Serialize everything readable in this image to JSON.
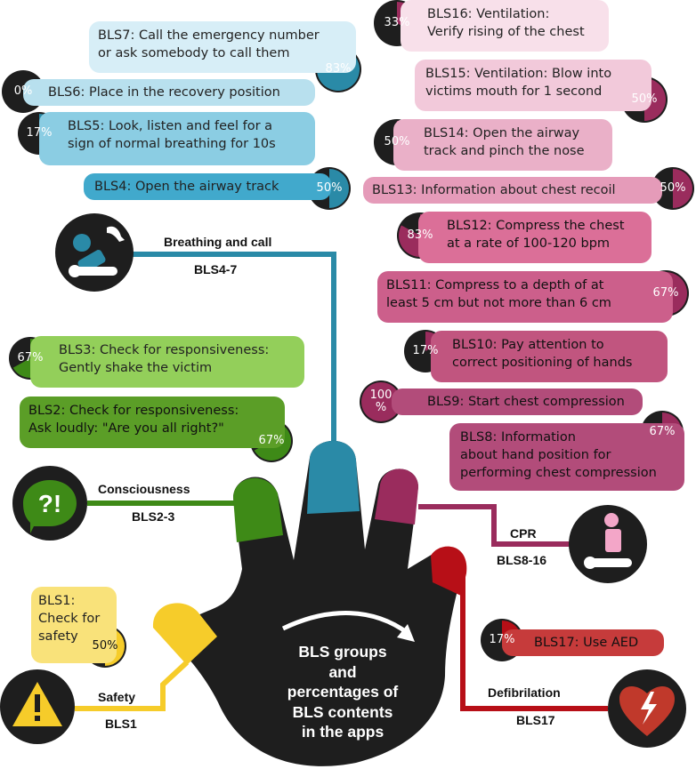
{
  "center_text": [
    "BLS groups",
    "and",
    "percentages of",
    "BLS contents",
    "in the apps"
  ],
  "groups": [
    {
      "id": "safety",
      "title": "Safety",
      "code": "BLS1",
      "color": "#f6cc2a"
    },
    {
      "id": "consciousness",
      "title": "Consciousness",
      "code": "BLS2-3",
      "color": "#3e8a17"
    },
    {
      "id": "breathing",
      "title": "Breathing and call",
      "code": "BLS4-7",
      "color": "#2a8aa7"
    },
    {
      "id": "cpr",
      "title": "CPR",
      "code": "BLS8-16",
      "color": "#9a2c5d"
    },
    {
      "id": "defib",
      "title": "Defibrilation",
      "code": "BLS17",
      "color": "#b70f17"
    }
  ],
  "icons": {
    "safety": "warning-triangle-icon",
    "consciousness": "question-exclamation-speech-icon",
    "breathing": "person-phone-call-icon",
    "cpr": "cpr-person-icon",
    "defib": "heart-defibrillator-icon"
  },
  "items": [
    {
      "id": "bls1",
      "lines": [
        "BLS1:",
        "Check for",
        "safety"
      ],
      "pct": "50%",
      "value": 50,
      "group": "safety"
    },
    {
      "id": "bls2",
      "lines": [
        "BLS2: Check for responsiveness:",
        "Ask loudly: \"Are you all right?\""
      ],
      "pct": "67%",
      "value": 67,
      "group": "consciousness"
    },
    {
      "id": "bls3",
      "lines": [
        "BLS3: Check for responsiveness:",
        "Gently shake the victim"
      ],
      "pct": "67%",
      "value": 67,
      "group": "consciousness"
    },
    {
      "id": "bls4",
      "lines": [
        "BLS4: Open the airway track"
      ],
      "pct": "50%",
      "value": 50,
      "group": "breathing"
    },
    {
      "id": "bls5",
      "lines": [
        "BLS5: Look, listen and feel for a",
        "sign of normal breathing for 10s"
      ],
      "pct": "17%",
      "value": 17,
      "group": "breathing"
    },
    {
      "id": "bls6",
      "lines": [
        "BLS6: Place in the recovery position"
      ],
      "pct": "0%",
      "value": 0,
      "group": "breathing"
    },
    {
      "id": "bls7",
      "lines": [
        "BLS7: Call the emergency number",
        "or ask somebody to call them"
      ],
      "pct": "83%",
      "value": 83,
      "group": "breathing"
    },
    {
      "id": "bls8",
      "lines": [
        "BLS8: Information",
        "about hand position for",
        "performing chest compression"
      ],
      "pct": "67%",
      "value": 67,
      "group": "cpr"
    },
    {
      "id": "bls9",
      "lines": [
        "BLS9: Start chest compression"
      ],
      "pct": "100\n%",
      "value": 100,
      "group": "cpr"
    },
    {
      "id": "bls10",
      "lines": [
        "BLS10: Pay attention to",
        "correct positioning of hands"
      ],
      "pct": "17%",
      "value": 17,
      "group": "cpr"
    },
    {
      "id": "bls11",
      "lines": [
        "BLS11: Compress to a depth of at",
        "least 5 cm but not more than 6 cm"
      ],
      "pct": "67%",
      "value": 67,
      "group": "cpr"
    },
    {
      "id": "bls12",
      "lines": [
        "BLS12: Compress the chest",
        "at a rate of 100-120 bpm"
      ],
      "pct": "83%",
      "value": 83,
      "group": "cpr"
    },
    {
      "id": "bls13",
      "lines": [
        "BLS13: Information about chest recoil"
      ],
      "pct": "50%",
      "value": 50,
      "group": "cpr"
    },
    {
      "id": "bls14",
      "lines": [
        "BLS14: Open the airway",
        "track and pinch the nose"
      ],
      "pct": "50%",
      "value": 50,
      "group": "cpr"
    },
    {
      "id": "bls15",
      "lines": [
        "BLS15: Ventilation: Blow into",
        "victims mouth for 1 second"
      ],
      "pct": "50%",
      "value": 50,
      "group": "cpr"
    },
    {
      "id": "bls16",
      "lines": [
        "BLS16: Ventilation:",
        "Verify rising of the chest"
      ],
      "pct": "33%",
      "value": 33,
      "group": "cpr"
    },
    {
      "id": "bls17",
      "lines": [
        "BLS17: Use AED"
      ],
      "pct": "17%",
      "value": 17,
      "group": "defib"
    }
  ]
}
